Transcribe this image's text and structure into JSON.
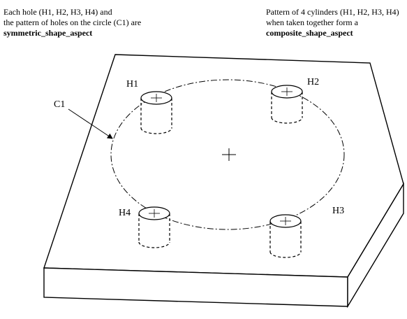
{
  "notes": {
    "left": {
      "line1": "Each hole (H1, H2, H3, H4) and",
      "line2": "the pattern of holes on the circle (C1) are",
      "term": "symmetric_shape_aspect"
    },
    "right": {
      "line1": "Pattern of 4 cylinders (H1, H2, H3, H4)",
      "line2": "when taken together form a",
      "term": "composite_shape_aspect"
    }
  },
  "labels": {
    "circle": "C1",
    "holes": [
      "H1",
      "H2",
      "H3",
      "H4"
    ]
  }
}
